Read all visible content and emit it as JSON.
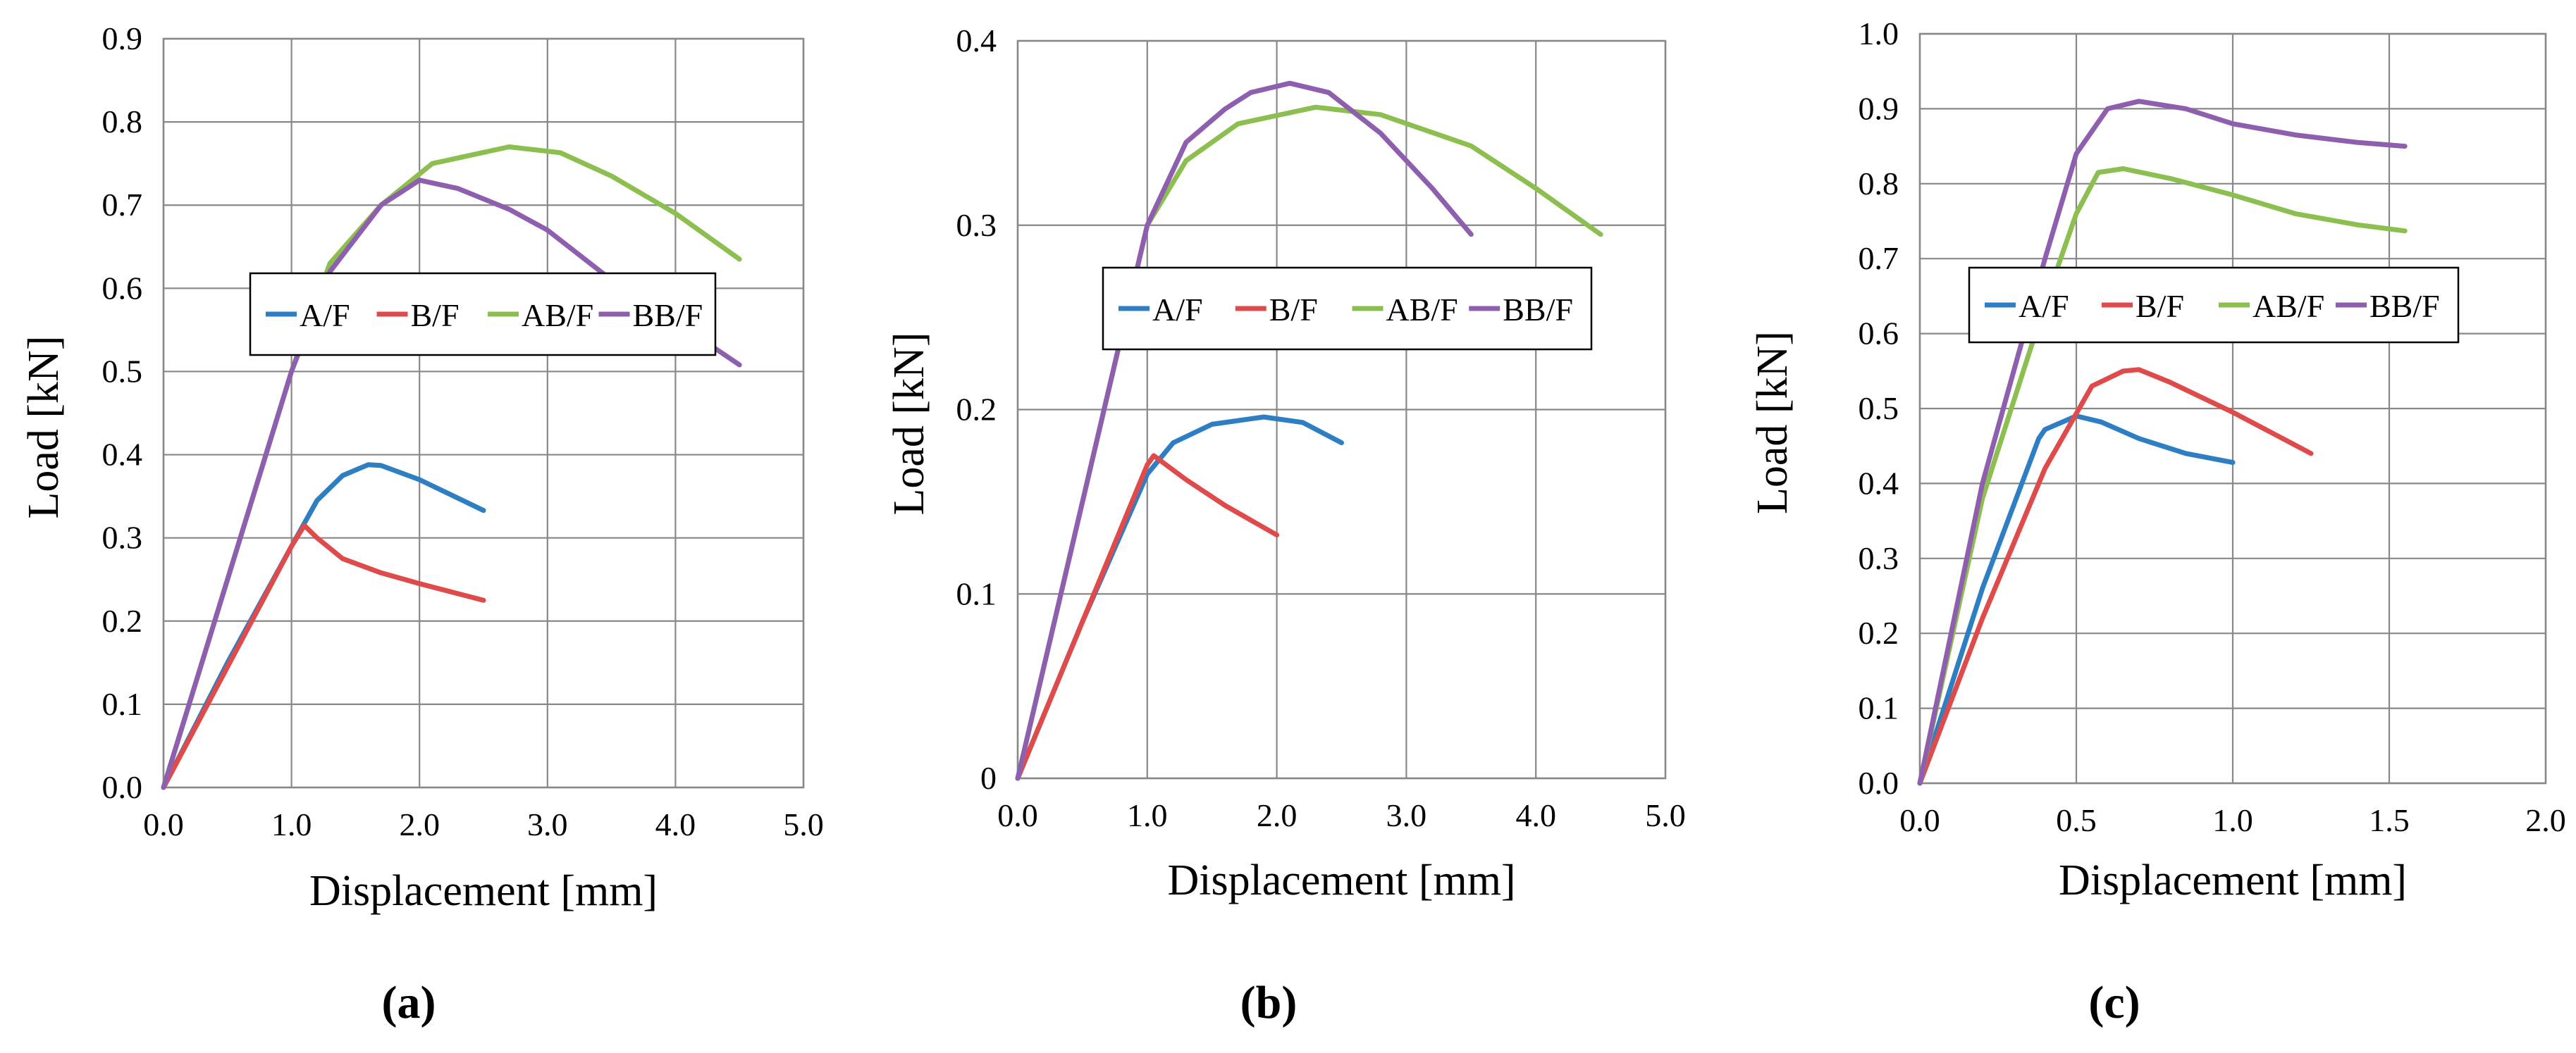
{
  "colors": {
    "A/F": "#2E7EC3",
    "B/F": "#DE4B4A",
    "AB/F": "#8CBF4F",
    "BB/F": "#8E5FAF",
    "grid": "#888888"
  },
  "chart_data": [
    {
      "type": "line",
      "panel_label": "(a)",
      "xlabel": "Displacement  [mm]",
      "ylabel": "Load [kN]",
      "xlim": [
        0,
        5
      ],
      "ylim": [
        0,
        0.9
      ],
      "xticks": [
        0,
        1,
        2,
        3,
        4,
        5
      ],
      "xtick_labels": [
        "0.0",
        "1.0",
        "2.0",
        "3.0",
        "4.0",
        "5.0"
      ],
      "yticks": [
        0,
        0.1,
        0.2,
        0.3,
        0.4,
        0.5,
        0.6,
        0.7,
        0.8,
        0.9
      ],
      "ytick_labels": [
        "0.0",
        "0.1",
        "0.2",
        "0.3",
        "0.4",
        "0.5",
        "0.6",
        "0.7",
        "0.8",
        "0.9"
      ],
      "grid": true,
      "legend_position": "center",
      "legend_entries": [
        "A/F",
        "B/F",
        "AB/F",
        "BB/F"
      ],
      "series": [
        {
          "name": "A/F",
          "x": [
            0,
            0.5,
            1.0,
            1.2,
            1.4,
            1.6,
            1.7,
            2.0,
            2.5
          ],
          "y": [
            0,
            0.15,
            0.29,
            0.345,
            0.375,
            0.388,
            0.387,
            0.37,
            0.333
          ]
        },
        {
          "name": "B/F",
          "x": [
            0,
            0.5,
            1.0,
            1.1,
            1.2,
            1.4,
            1.7,
            2.0,
            2.5
          ],
          "y": [
            0,
            0.145,
            0.29,
            0.315,
            0.3,
            0.275,
            0.258,
            0.245,
            0.225
          ]
        },
        {
          "name": "AB/F",
          "x": [
            0,
            0.5,
            1.0,
            1.3,
            1.7,
            2.1,
            2.7,
            3.1,
            3.5,
            4.0,
            4.5
          ],
          "y": [
            0,
            0.25,
            0.5,
            0.63,
            0.7,
            0.75,
            0.77,
            0.763,
            0.735,
            0.69,
            0.635
          ]
        },
        {
          "name": "BB/F",
          "x": [
            0,
            0.5,
            1.0,
            1.3,
            1.7,
            2.0,
            2.3,
            2.7,
            3.0,
            3.5,
            4.0,
            4.5
          ],
          "y": [
            0,
            0.25,
            0.5,
            0.62,
            0.7,
            0.73,
            0.72,
            0.695,
            0.67,
            0.61,
            0.56,
            0.508
          ]
        }
      ]
    },
    {
      "type": "line",
      "panel_label": "(b)",
      "xlabel": "Displacement  [mm]",
      "ylabel": "Load [kN]",
      "xlim": [
        0,
        5
      ],
      "ylim": [
        0,
        0.4
      ],
      "xticks": [
        0,
        1,
        2,
        3,
        4,
        5
      ],
      "xtick_labels": [
        "0.0",
        "1.0",
        "2.0",
        "3.0",
        "4.0",
        "5.0"
      ],
      "yticks": [
        0,
        0.1,
        0.2,
        0.3,
        0.4
      ],
      "ytick_labels": [
        "0",
        "0.1",
        "0.2",
        "0.3",
        "0.4"
      ],
      "grid": true,
      "legend_position": "center",
      "legend_entries": [
        "A/F",
        "B/F",
        "AB/F",
        "BB/F"
      ],
      "series": [
        {
          "name": "A/F",
          "x": [
            0,
            0.5,
            1.0,
            1.2,
            1.5,
            1.9,
            2.2,
            2.5
          ],
          "y": [
            0,
            0.085,
            0.165,
            0.182,
            0.192,
            0.196,
            0.193,
            0.182
          ]
        },
        {
          "name": "B/F",
          "x": [
            0,
            0.5,
            1.0,
            1.05,
            1.3,
            1.6,
            2.0
          ],
          "y": [
            0,
            0.085,
            0.17,
            0.175,
            0.162,
            0.148,
            0.132
          ]
        },
        {
          "name": "AB/F",
          "x": [
            0,
            0.5,
            1.0,
            1.3,
            1.7,
            2.3,
            2.8,
            3.5,
            4.0,
            4.5
          ],
          "y": [
            0,
            0.15,
            0.3,
            0.335,
            0.355,
            0.364,
            0.36,
            0.343,
            0.32,
            0.295
          ]
        },
        {
          "name": "BB/F",
          "x": [
            0,
            0.5,
            1.0,
            1.3,
            1.6,
            1.8,
            2.1,
            2.4,
            2.8,
            3.2,
            3.5
          ],
          "y": [
            0,
            0.15,
            0.3,
            0.345,
            0.363,
            0.372,
            0.377,
            0.372,
            0.35,
            0.32,
            0.295
          ]
        }
      ]
    },
    {
      "type": "line",
      "panel_label": "(c)",
      "xlabel": "Displacement  [mm]",
      "ylabel": "Load [kN]",
      "xlim": [
        0,
        2
      ],
      "ylim": [
        0,
        1.0
      ],
      "xticks": [
        0,
        0.5,
        1,
        1.5,
        2
      ],
      "xtick_labels": [
        "0.0",
        "0.5",
        "1.0",
        "1.5",
        "2.0"
      ],
      "yticks": [
        0,
        0.1,
        0.2,
        0.3,
        0.4,
        0.5,
        0.6,
        0.7,
        0.8,
        0.9,
        1.0
      ],
      "ytick_labels": [
        "0.0",
        "0.1",
        "0.2",
        "0.3",
        "0.4",
        "0.5",
        "0.6",
        "0.7",
        "0.8",
        "0.9",
        "1.0"
      ],
      "grid": true,
      "legend_position": "center-top",
      "legend_entries": [
        "A/F",
        "B/F",
        "AB/F",
        "BB/F"
      ],
      "series": [
        {
          "name": "A/F",
          "x": [
            0,
            0.2,
            0.38,
            0.4,
            0.5,
            0.58,
            0.7,
            0.85,
            1.0
          ],
          "y": [
            0,
            0.26,
            0.46,
            0.472,
            0.49,
            0.482,
            0.46,
            0.44,
            0.428
          ]
        },
        {
          "name": "B/F",
          "x": [
            0,
            0.2,
            0.4,
            0.55,
            0.65,
            0.7,
            0.8,
            1.0,
            1.25
          ],
          "y": [
            0,
            0.22,
            0.42,
            0.53,
            0.55,
            0.552,
            0.535,
            0.495,
            0.44
          ]
        },
        {
          "name": "AB/F",
          "x": [
            0,
            0.2,
            0.4,
            0.5,
            0.57,
            0.65,
            0.8,
            1.0,
            1.2,
            1.4,
            1.55
          ],
          "y": [
            0,
            0.38,
            0.64,
            0.76,
            0.815,
            0.82,
            0.807,
            0.785,
            0.76,
            0.745,
            0.737
          ]
        },
        {
          "name": "BB/F",
          "x": [
            0,
            0.2,
            0.4,
            0.5,
            0.6,
            0.7,
            0.85,
            1.0,
            1.2,
            1.4,
            1.55
          ],
          "y": [
            0,
            0.4,
            0.7,
            0.84,
            0.9,
            0.91,
            0.9,
            0.88,
            0.865,
            0.855,
            0.85
          ]
        }
      ]
    }
  ]
}
